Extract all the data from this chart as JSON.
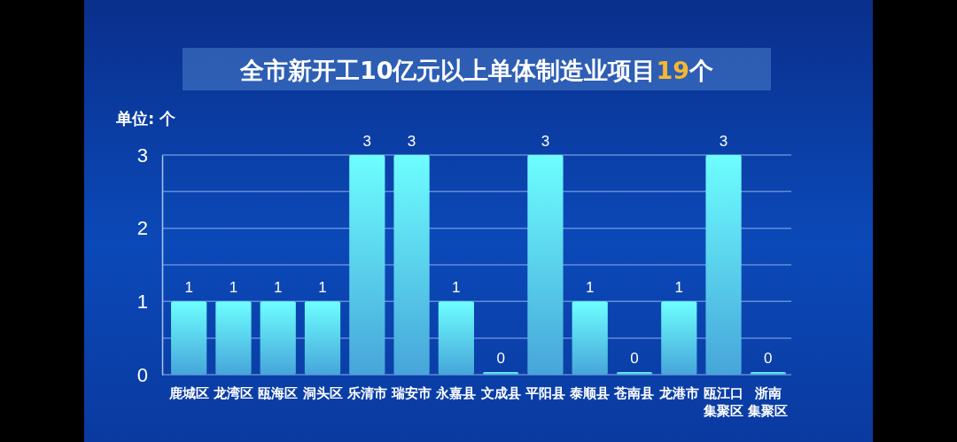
{
  "chart_data": {
    "type": "bar",
    "title": "全市新开工10亿元以上单体制造业项目19个",
    "ylabel": "单位: 个",
    "categories": [
      "鹿城区",
      "龙湾区",
      "瓯海区",
      "洞头区",
      "乐清市",
      "瑞安市",
      "永嘉县",
      "文成县",
      "平阳县",
      "泰顺县",
      "苍南县",
      "龙港市",
      "瓯江口集聚区",
      "浙南集聚区"
    ],
    "values": [
      1,
      1,
      1,
      1,
      3,
      3,
      1,
      0,
      3,
      1,
      0,
      1,
      3,
      0
    ],
    "color": "#4fb8f2",
    "ylim": [
      0,
      3
    ],
    "yticks": [
      0,
      {
        "value": 0.5,
        "label": null
      },
      1,
      {
        "value": 1.5,
        "label": null
      },
      2,
      {
        "value": 2.5,
        "label": null
      },
      3
    ],
    "grid": true,
    "data_labels": true
  }
}
